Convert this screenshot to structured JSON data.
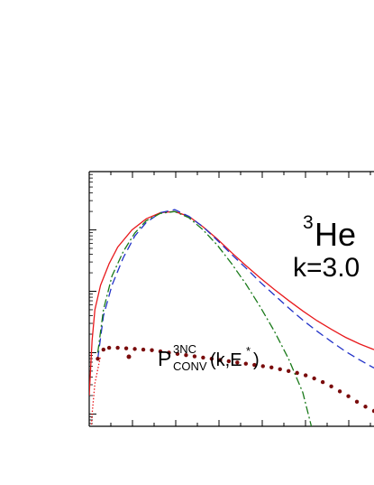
{
  "chart_data": {
    "type": "line",
    "title": "",
    "xlabel": "",
    "ylabel": "",
    "annotations": {
      "nucleus_sup": "3",
      "nucleus": "He",
      "k_label": "k=3.0"
    },
    "legend": {
      "placement": "lower-left",
      "entries": [
        {
          "symbol": "dot",
          "color": "#7a0c0c",
          "main": "P",
          "sup": "3NC",
          "sub": "CONV",
          "tail": "(k,E",
          "tail_sup": "*",
          "close": ")"
        }
      ]
    },
    "y_scale": "log",
    "grid": false,
    "note": "axes unlabeled in visible crop; x in E* units ranging 0..1, y log decades",
    "xlim": [
      0,
      1
    ],
    "ylim_decades": [
      0,
      4
    ],
    "series": [
      {
        "style": "solid",
        "color": "#e8191c",
        "x": [
          0.0,
          0.01,
          0.02,
          0.04,
          0.07,
          0.1,
          0.15,
          0.2,
          0.25,
          0.3,
          0.35,
          0.4,
          0.45,
          0.5,
          0.55,
          0.6,
          0.65,
          0.7,
          0.75,
          0.8,
          0.85,
          0.9,
          0.95,
          1.0
        ],
        "y": [
          0.3,
          1.2,
          1.7,
          2.1,
          2.45,
          2.72,
          3.0,
          3.18,
          3.28,
          3.3,
          3.22,
          3.05,
          2.85,
          2.63,
          2.42,
          2.22,
          2.03,
          1.85,
          1.68,
          1.52,
          1.38,
          1.25,
          1.14,
          1.05
        ]
      },
      {
        "style": "dashed",
        "color": "#2232c8",
        "x": [
          0.03,
          0.05,
          0.08,
          0.12,
          0.16,
          0.2,
          0.25,
          0.3,
          0.35,
          0.4,
          0.45,
          0.5,
          0.55,
          0.6,
          0.65,
          0.7,
          0.75,
          0.8,
          0.85,
          0.9,
          0.95,
          1.0
        ],
        "y": [
          0.9,
          1.6,
          2.1,
          2.55,
          2.9,
          3.12,
          3.28,
          3.33,
          3.22,
          3.05,
          2.83,
          2.6,
          2.38,
          2.15,
          1.94,
          1.73,
          1.53,
          1.35,
          1.18,
          1.02,
          0.88,
          0.75
        ]
      },
      {
        "style": "dashdot",
        "color": "#1a7a1a",
        "x": [
          0.03,
          0.05,
          0.08,
          0.12,
          0.16,
          0.2,
          0.25,
          0.3,
          0.35,
          0.4,
          0.45,
          0.5,
          0.55,
          0.6,
          0.65,
          0.7,
          0.75,
          0.78,
          0.8,
          0.81,
          0.82
        ],
        "y": [
          1.0,
          1.7,
          2.25,
          2.65,
          2.95,
          3.15,
          3.27,
          3.3,
          3.2,
          3.0,
          2.75,
          2.45,
          2.12,
          1.75,
          1.35,
          0.9,
          0.35,
          -0.2,
          -0.9,
          -1.6,
          -2.8
        ]
      },
      {
        "style": "dotted",
        "color": "#7a0c0c",
        "marker": "dot",
        "x": [
          0.03,
          0.05,
          0.07,
          0.1,
          0.13,
          0.16,
          0.19,
          0.22,
          0.25,
          0.28,
          0.31,
          0.34,
          0.37,
          0.4,
          0.43,
          0.46,
          0.49,
          0.52,
          0.55,
          0.58,
          0.61,
          0.64,
          0.67,
          0.7,
          0.73,
          0.76,
          0.79,
          0.82,
          0.85,
          0.88,
          0.91,
          0.94,
          0.97,
          1.0
        ],
        "y": [
          0.9,
          1.05,
          1.08,
          1.08,
          1.07,
          1.06,
          1.05,
          1.04,
          1.02,
          1.0,
          0.98,
          0.96,
          0.94,
          0.92,
          0.9,
          0.88,
          0.86,
          0.84,
          0.82,
          0.8,
          0.78,
          0.76,
          0.73,
          0.7,
          0.67,
          0.63,
          0.58,
          0.52,
          0.45,
          0.37,
          0.29,
          0.2,
          0.12,
          0.05
        ]
      },
      {
        "style": "dotted-fine",
        "color": "#e8191c",
        "x": [
          0.0,
          0.01,
          0.02,
          0.04
        ],
        "y": [
          -0.8,
          0.0,
          0.5,
          0.95
        ]
      }
    ]
  }
}
